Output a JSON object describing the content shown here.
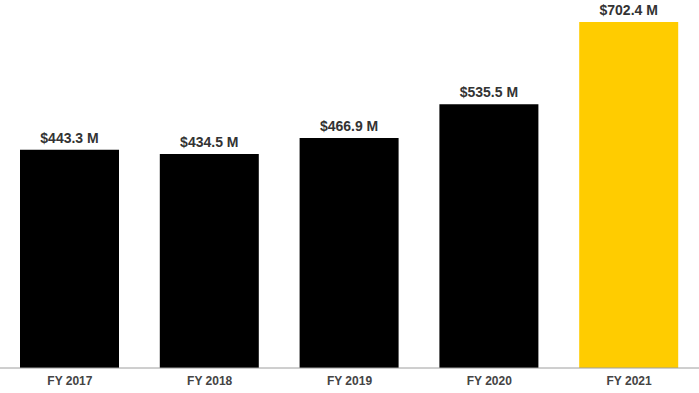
{
  "chart_data": {
    "type": "bar",
    "categories": [
      "FY 2017",
      "FY 2018",
      "FY 2019",
      "FY 2020",
      "FY 2021"
    ],
    "values": [
      443.3,
      434.5,
      466.9,
      535.5,
      702.4
    ],
    "value_labels": [
      "$443.3 M",
      "$434.5 M",
      "$466.9 M",
      "$535.5 M",
      "$702.4 M"
    ],
    "colors": [
      "#000000",
      "#000000",
      "#000000",
      "#000000",
      "#FFCC00"
    ],
    "data_labels": true,
    "grid": false,
    "tick_labels": "x"
  }
}
